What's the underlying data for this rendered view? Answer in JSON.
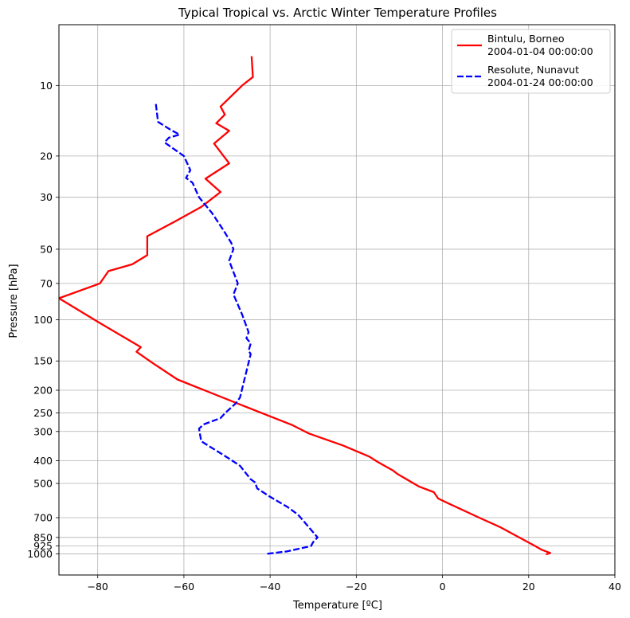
{
  "chart_data": {
    "type": "line",
    "title": "Typical Tropical vs. Arctic Winter Temperature Profiles",
    "xlabel": "Temperature [ºC]",
    "ylabel": "Pressure [hPa]",
    "xlim": [
      -89,
      40
    ],
    "ylim": [
      1230,
      5.5
    ],
    "y_scale": "log",
    "y_inverted": true,
    "grid": true,
    "legend_position": "top-right",
    "x_ticks": [
      -80,
      -60,
      -40,
      -20,
      0,
      20,
      40
    ],
    "x_tick_labels": [
      "−80",
      "−60",
      "−40",
      "−20",
      "0",
      "20",
      "40"
    ],
    "y_ticks": [
      10,
      20,
      30,
      50,
      70,
      100,
      150,
      200,
      250,
      300,
      400,
      500,
      700,
      850,
      925,
      1000
    ],
    "y_tick_labels": [
      "10",
      "20",
      "30",
      "50",
      "70",
      "100",
      "150",
      "200",
      "250",
      "300",
      "400",
      "500",
      "700",
      "850",
      "925",
      "1000"
    ],
    "series": [
      {
        "name": "Bintulu, Borneo\n2004-01-04 00:00:00",
        "legend_lines": [
          "Bintulu, Borneo",
          "2004-01-04 00:00:00"
        ],
        "color": "#ff0000",
        "line_style": "solid",
        "points": [
          [
            -44.3,
            7.5
          ],
          [
            -44.0,
            9.2
          ],
          [
            -46.5,
            10.0
          ],
          [
            -51.5,
            12.3
          ],
          [
            -50.5,
            13.3
          ],
          [
            -52.5,
            14.5
          ],
          [
            -49.5,
            15.6
          ],
          [
            -53.0,
            17.7
          ],
          [
            -49.5,
            21.5
          ],
          [
            -55.0,
            25.0
          ],
          [
            -51.5,
            28.5
          ],
          [
            -56.0,
            33.0
          ],
          [
            -62.0,
            38.0
          ],
          [
            -68.5,
            44.0
          ],
          [
            -68.5,
            53.0
          ],
          [
            -72.0,
            58.0
          ],
          [
            -77.5,
            62.0
          ],
          [
            -79.5,
            70.0
          ],
          [
            -89.0,
            81.0
          ],
          [
            -80.0,
            102.0
          ],
          [
            -70.0,
            131.0
          ],
          [
            -71.0,
            137.0
          ],
          [
            -67.5,
            152.0
          ],
          [
            -61.5,
            180.0
          ],
          [
            -46.5,
            232.0
          ],
          [
            -35.0,
            281.0
          ],
          [
            -31.0,
            306.0
          ],
          [
            -23.0,
            345.0
          ],
          [
            -17.0,
            384.0
          ],
          [
            -15.0,
            405.0
          ],
          [
            -11.5,
            440.0
          ],
          [
            -10.5,
            455.0
          ],
          [
            -5.5,
            515.0
          ],
          [
            -2.0,
            545.0
          ],
          [
            -1.0,
            580.0
          ],
          [
            1.5,
            610.0
          ],
          [
            8.5,
            700.0
          ],
          [
            13.5,
            770.0
          ],
          [
            17.0,
            835.0
          ],
          [
            21.5,
            925.0
          ],
          [
            23.0,
            960.0
          ],
          [
            25.0,
            990.0
          ],
          [
            24.0,
            1005.0
          ]
        ]
      },
      {
        "name": "Resolute, Nunavut\n2004-01-24 00:00:00",
        "legend_lines": [
          "Resolute, Nunavut",
          "2004-01-24 00:00:00"
        ],
        "color": "#0000ff",
        "line_style": "dashed",
        "points": [
          [
            -66.5,
            12.0
          ],
          [
            -66.0,
            14.3
          ],
          [
            -63.0,
            15.5
          ],
          [
            -61.0,
            16.2
          ],
          [
            -63.5,
            16.7
          ],
          [
            -64.5,
            17.5
          ],
          [
            -60.0,
            20.0
          ],
          [
            -58.5,
            23.0
          ],
          [
            -59.5,
            24.8
          ],
          [
            -58.0,
            26.0
          ],
          [
            -56.5,
            30.0
          ],
          [
            -53.5,
            35.0
          ],
          [
            -51.0,
            41.0
          ],
          [
            -49.0,
            47.0
          ],
          [
            -48.5,
            50.0
          ],
          [
            -49.5,
            56.0
          ],
          [
            -47.5,
            70.0
          ],
          [
            -48.5,
            78.0
          ],
          [
            -46.5,
            95.0
          ],
          [
            -45.0,
            113.0
          ],
          [
            -45.5,
            120.0
          ],
          [
            -44.5,
            126.0
          ],
          [
            -45.0,
            136.0
          ],
          [
            -44.5,
            140.0
          ],
          [
            -47.0,
            215.0
          ],
          [
            -48.0,
            228.0
          ],
          [
            -50.5,
            251.0
          ],
          [
            -51.5,
            263.0
          ],
          [
            -55.5,
            280.0
          ],
          [
            -56.5,
            292.0
          ],
          [
            -56.0,
            330.0
          ],
          [
            -49.5,
            392.0
          ],
          [
            -47.0,
            420.0
          ],
          [
            -44.5,
            480.0
          ],
          [
            -43.5,
            495.0
          ],
          [
            -43.0,
            525.0
          ],
          [
            -40.0,
            570.0
          ],
          [
            -36.0,
            630.0
          ],
          [
            -33.5,
            680.0
          ],
          [
            -29.0,
            850.0
          ],
          [
            -30.0,
            890.0
          ],
          [
            -30.5,
            925.0
          ],
          [
            -36.0,
            975.0
          ],
          [
            -41.0,
            1000.0
          ]
        ]
      }
    ]
  }
}
